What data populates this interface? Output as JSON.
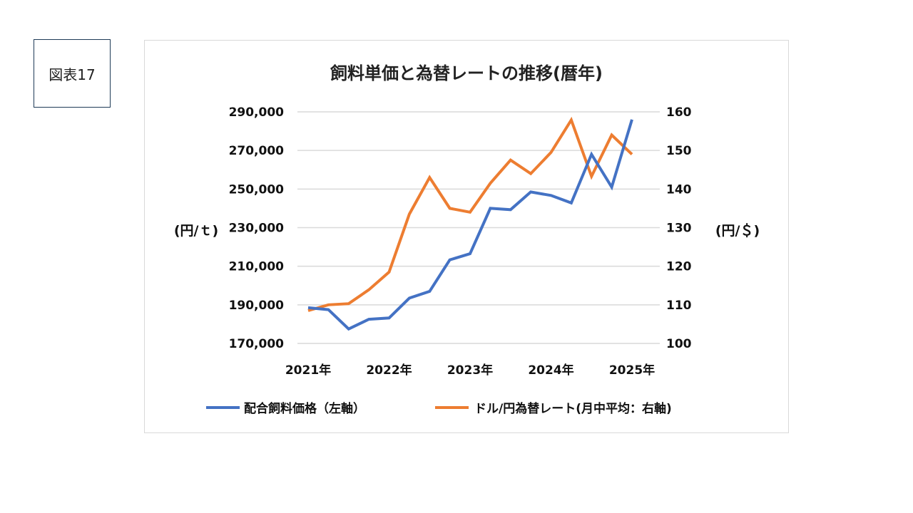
{
  "figure_label": "図表17",
  "chart_data": {
    "type": "line",
    "title": "飼料単価と為替レートの推移(暦年)",
    "y_left_label": "(円/ｔ)",
    "y_right_label": "(円/＄)",
    "y_left_ticks": [
      "290,000",
      "270,000",
      "250,000",
      "230,000",
      "210,000",
      "190,000",
      "170,000"
    ],
    "y_right_ticks": [
      "160",
      "150",
      "140",
      "130",
      "120",
      "110",
      "100"
    ],
    "y_left_range": [
      170000,
      290000
    ],
    "y_right_range": [
      100,
      160
    ],
    "x_ticks": [
      "2021年",
      "2022年",
      "2023年",
      "2024年",
      "2025年"
    ],
    "x_tick_positions": [
      0,
      4,
      8,
      12,
      16
    ],
    "grid": true,
    "legend_position": "bottom",
    "series": [
      {
        "name": "配合飼料価格（左軸）",
        "axis": "left",
        "color": "#4472C4",
        "values": [
          188500,
          187500,
          177500,
          182500,
          183200,
          193500,
          197000,
          213300,
          216500,
          240000,
          239300,
          248500,
          246700,
          242800,
          268000,
          251000,
          286000
        ]
      },
      {
        "name": "ドル/円為替レート(月中平均：右軸)",
        "axis": "right",
        "color": "#ED7D31",
        "values": [
          108.5,
          110.0,
          110.3,
          113.9,
          118.5,
          133.5,
          143.0,
          135.0,
          134.0,
          141.5,
          147.5,
          144.0,
          149.5,
          157.9,
          143.3,
          154.0,
          149.0
        ]
      }
    ]
  }
}
